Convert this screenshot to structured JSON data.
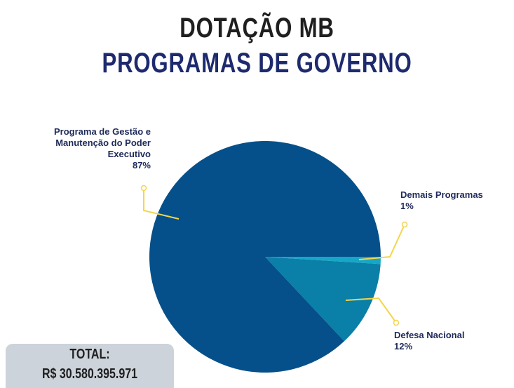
{
  "chart_data": {
    "type": "pie",
    "title": "DOTAÇÃO MB",
    "subtitle": "PROGRAMAS DE GOVERNO",
    "categories": [
      "Demais Programas",
      "Defesa Nacional",
      "Programa de Gestão e Manutenção do Poder Executivo"
    ],
    "values": [
      1,
      12,
      87
    ],
    "value_labels": [
      "1%",
      "12%",
      "87%"
    ],
    "colors": [
      "#16a7c6",
      "#0a7fa8",
      "#05508a"
    ],
    "annotations": [
      "TOTAL:",
      "R$ 30.580.395.971"
    ]
  }
}
